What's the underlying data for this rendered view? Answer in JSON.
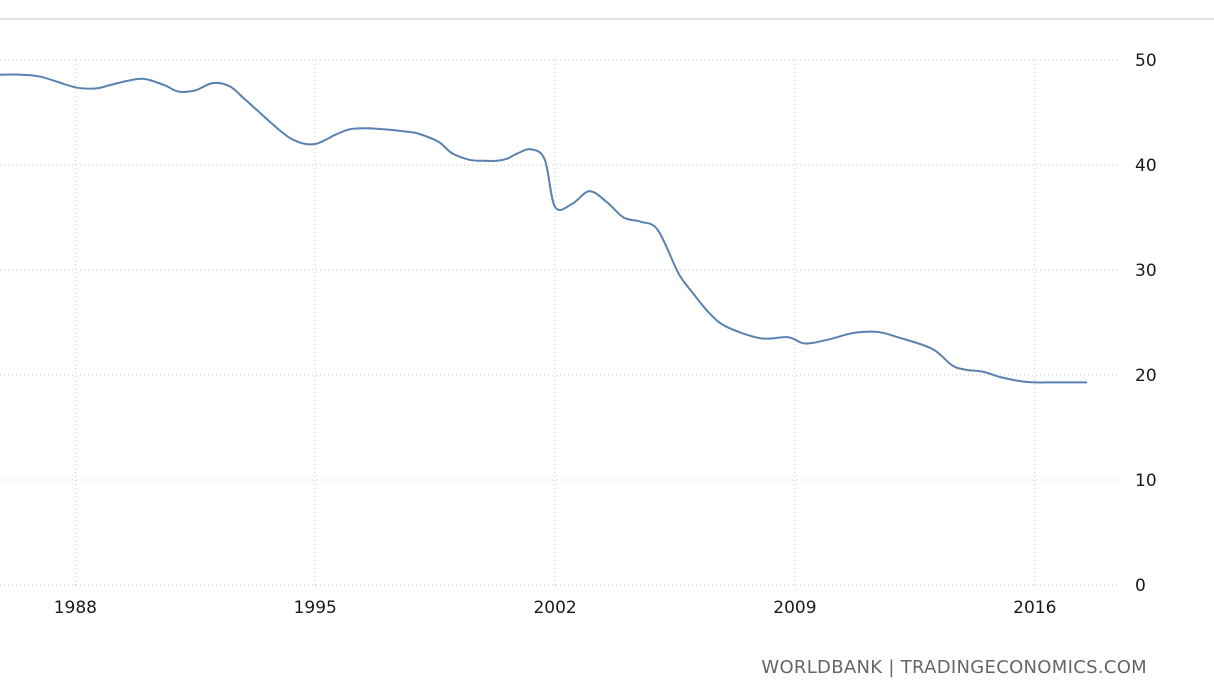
{
  "chart_data": {
    "type": "line",
    "title": "",
    "xlabel": "",
    "ylabel": "",
    "xlim": [
      1985.8,
      2018.4
    ],
    "ylim": [
      0,
      50
    ],
    "grid": true,
    "legend": "none",
    "x_ticks": [
      {
        "value": 1988,
        "label": "1988"
      },
      {
        "value": 1995,
        "label": "1995"
      },
      {
        "value": 2002,
        "label": "2002"
      },
      {
        "value": 2009,
        "label": "2009"
      },
      {
        "value": 2016,
        "label": "2016"
      }
    ],
    "y_ticks": [
      {
        "value": 0,
        "label": "0"
      },
      {
        "value": 10,
        "label": "10"
      },
      {
        "value": 20,
        "label": "20"
      },
      {
        "value": 30,
        "label": "30"
      },
      {
        "value": 40,
        "label": "40"
      },
      {
        "value": 50,
        "label": "50"
      }
    ],
    "series": [
      {
        "color": "#5a82b0",
        "x": [
          1985.8,
          1986.4,
          1987,
          1988,
          1988.6,
          1989,
          1989.5,
          1990,
          1990.6,
          1991,
          1991.5,
          1992,
          1992.5,
          1993,
          1994,
          1994.5,
          1995,
          1995.6,
          1996,
          1996.5,
          1997,
          1997.6,
          1998,
          1998.6,
          1999,
          1999.5,
          1999.9,
          2000.3,
          2000.6,
          2000.9,
          2001.3,
          2001.7,
          2002,
          2002.5,
          2003,
          2003.5,
          2004,
          2004.5,
          2005,
          2005.6,
          2006,
          2006.5,
          2007,
          2008,
          2008.8,
          2009.3,
          2010,
          2010.7,
          2011.4,
          2012,
          2013,
          2013.6,
          2014,
          2014.5,
          2015,
          2015.6,
          2016,
          2016.5,
          2017,
          2017.5
        ],
        "y": [
          48.6,
          48.6,
          48.4,
          47.4,
          47.3,
          47.6,
          48.0,
          48.2,
          47.6,
          47.0,
          47.1,
          47.8,
          47.5,
          46.1,
          43.2,
          42.2,
          42.0,
          42.9,
          43.4,
          43.5,
          43.4,
          43.2,
          43.0,
          42.2,
          41.1,
          40.5,
          40.4,
          40.4,
          40.6,
          41.1,
          41.5,
          40.5,
          36.0,
          36.3,
          37.5,
          36.5,
          35.0,
          34.6,
          33.8,
          29.7,
          27.9,
          25.9,
          24.6,
          23.5,
          23.6,
          23.0,
          23.4,
          24.0,
          24.1,
          23.6,
          22.5,
          20.9,
          20.5,
          20.3,
          19.8,
          19.4,
          19.3,
          19.3,
          19.3,
          19.3
        ]
      }
    ]
  },
  "source": {
    "text": "WORLDBANK | TRADINGECONOMICS.COM"
  }
}
